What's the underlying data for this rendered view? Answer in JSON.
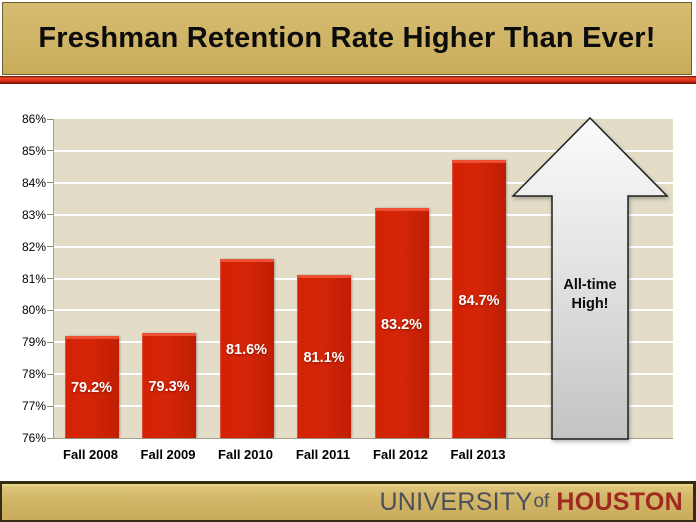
{
  "slide": {
    "title": "Freshman Retention Rate Higher Than Ever!"
  },
  "chart_data": {
    "type": "bar",
    "title": "Freshman Retention Rate Higher Than Ever!",
    "categories": [
      "Fall 2008",
      "Fall 2009",
      "Fall 2010",
      "Fall 2011",
      "Fall 2012",
      "Fall 2013"
    ],
    "values": [
      79.2,
      79.3,
      81.6,
      81.1,
      83.2,
      84.7
    ],
    "value_labels": [
      "79.2%",
      "79.3%",
      "81.6%",
      "81.1%",
      "83.2%",
      "84.7%"
    ],
    "xlabel": "",
    "ylabel": "",
    "ylim": [
      76,
      86
    ],
    "ytick_step": 1,
    "ytick_suffix": "%",
    "grid": true,
    "legend": "none",
    "bar_color": "#d42104",
    "plot_bg": "#e3ddc8"
  },
  "annotation": {
    "line1": "All-time",
    "line2": "High!"
  },
  "footer": {
    "university": "UNIVERSITY",
    "of": "of",
    "houston": "HOUSTON"
  },
  "colors": {
    "banner_gold": "#d0b466",
    "stripe_red": "#c62310",
    "bar_red": "#d42104",
    "arrow_fill_top": "#fafafa",
    "arrow_fill_bottom": "#c3c3c3",
    "university_gray": "#4a4f5a",
    "houston_red": "#9e2a20"
  }
}
